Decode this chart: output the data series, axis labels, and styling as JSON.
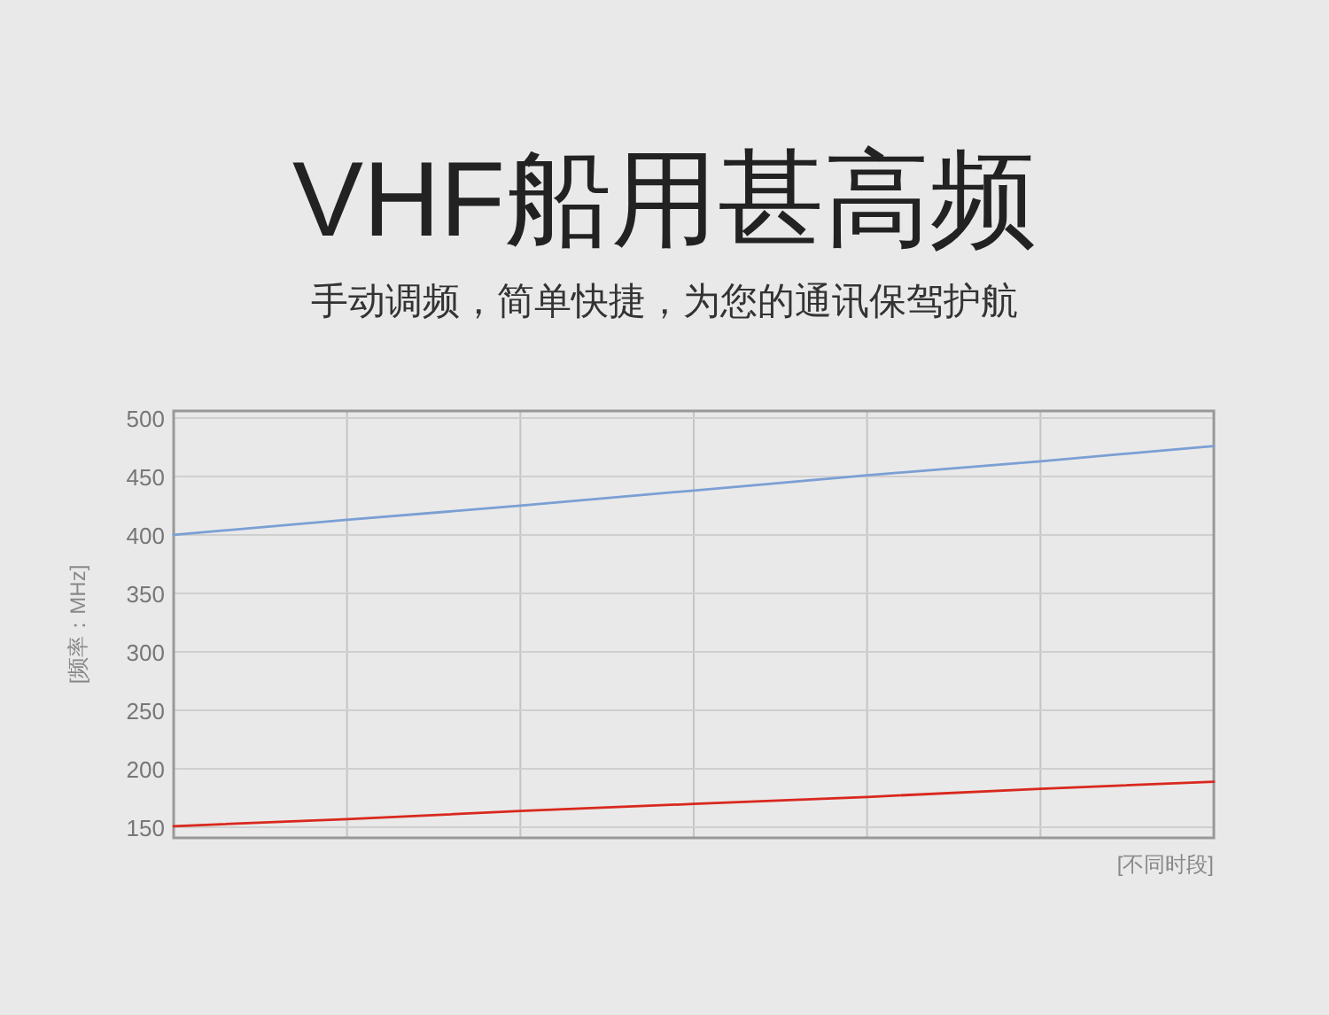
{
  "chart_data": {
    "type": "line",
    "title": "VHF船用甚高频",
    "subtitle": "手动调频，简单快捷，为您的通讯保驾护航",
    "xlabel": "[不同时段]",
    "ylabel": "[频率：MHz]",
    "categories": [
      null,
      null,
      null,
      null,
      null,
      null,
      null
    ],
    "ylim": [
      141,
      506
    ],
    "yticks": [
      150,
      200,
      250,
      300,
      350,
      400,
      450,
      500
    ],
    "tick_labels": "y",
    "grid": true,
    "marker": "none",
    "line_style": "solid",
    "series": [
      {
        "color": "#7b9fd4",
        "values": [
          400,
          413,
          425,
          438,
          451,
          463,
          476
        ]
      },
      {
        "color": "#d9281e",
        "values": [
          151,
          157,
          164,
          170,
          176,
          183,
          189
        ]
      }
    ]
  }
}
